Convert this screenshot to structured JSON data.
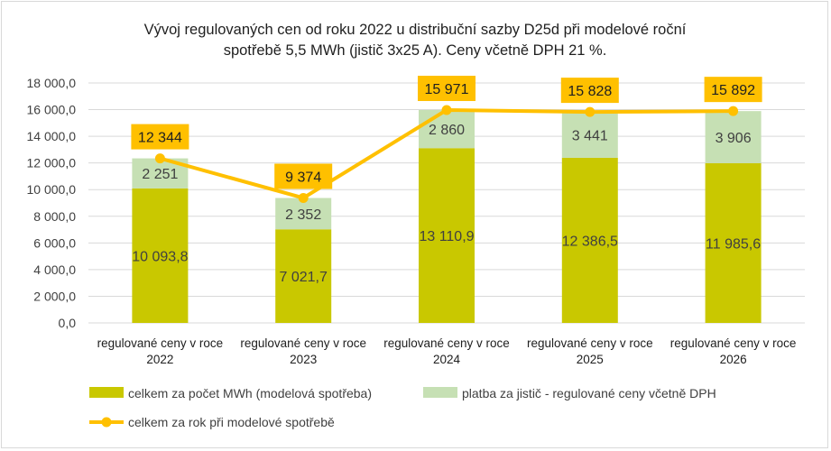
{
  "chart_data": {
    "type": "bar",
    "stacked": true,
    "title": [
      "Vývoj regulovaných cen od roku 2022 u distribuční sazby D25d při modelové roční",
      "spotřebě 5,5 MWh (jistič 3x25 A). Ceny včetně DPH 21 %."
    ],
    "categories": [
      [
        "regulované ceny v roce",
        "2022"
      ],
      [
        "regulované ceny v roce",
        "2023"
      ],
      [
        "regulované ceny v roce",
        "2024"
      ],
      [
        "regulované ceny v roce",
        "2025"
      ],
      [
        "regulované ceny v roce",
        "2026"
      ]
    ],
    "ylim": [
      0,
      18000
    ],
    "yticks": [
      0,
      2000,
      4000,
      6000,
      8000,
      10000,
      12000,
      14000,
      16000,
      18000
    ],
    "ytick_labels": [
      "0,0",
      "2 000,0",
      "4 000,0",
      "6 000,0",
      "8 000,0",
      "10 000,0",
      "12 000,0",
      "14 000,0",
      "16 000,0",
      "18 000,0"
    ],
    "grid": true,
    "legend_position": "bottom",
    "series": [
      {
        "name": "celkem za počet MWh (modelová spotřeba)",
        "kind": "bar",
        "color": "#c9c800",
        "values": [
          10093.8,
          7021.7,
          13110.9,
          12386.5,
          11985.6
        ],
        "labels": [
          "10 093,8",
          "7 021,7",
          "13 110,9",
          "12 386,5",
          "11 985,6"
        ]
      },
      {
        "name": "platba za jistič - regulované ceny včetně DPH",
        "kind": "bar",
        "color": "#c6e0b4",
        "values": [
          2251,
          2352,
          2860,
          3441,
          3906
        ],
        "labels": [
          "2 251",
          "2 352",
          "2 860",
          "3 441",
          "3 906"
        ]
      },
      {
        "name": "celkem za rok při modelové spotřebě",
        "kind": "line",
        "color": "#ffc000",
        "values": [
          12344,
          9374,
          15971,
          15828,
          15892
        ],
        "labels": [
          "12 344",
          "9 374",
          "15 971",
          "15 828",
          "15 892"
        ]
      }
    ]
  }
}
